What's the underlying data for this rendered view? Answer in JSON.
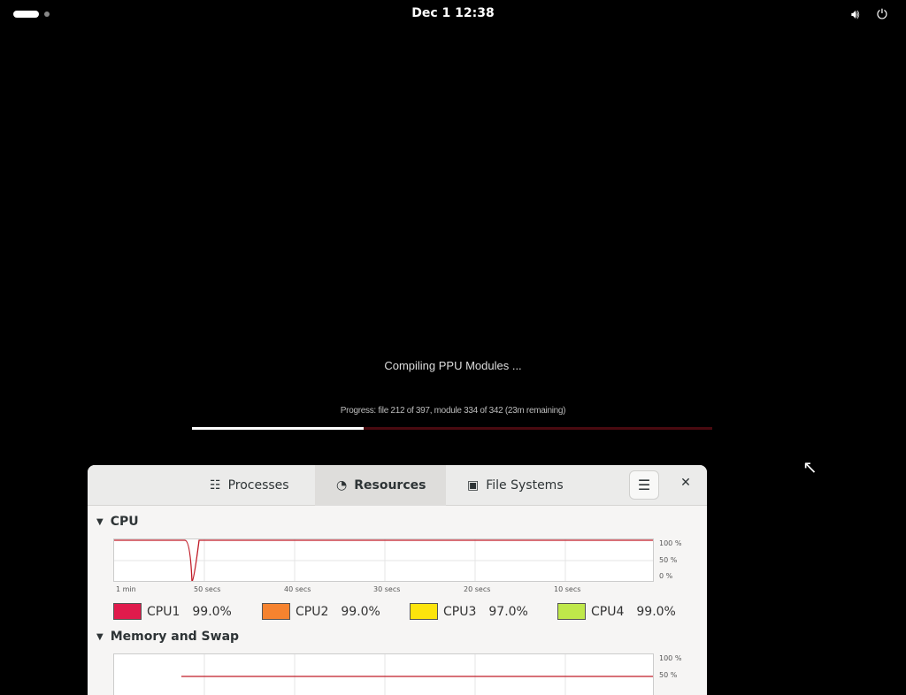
{
  "topbar": {
    "clock": "Dec 1  12:38",
    "icons": [
      "volume-icon",
      "power-icon"
    ]
  },
  "splash": {
    "title": "Compiling PPU Modules ...",
    "progress_text": "Progress: file 212 of 397, module 334 of 342 (23m remaining)",
    "progress_percent": 33,
    "colors": {
      "fill": "#ffffff",
      "track": "#4a0a10"
    }
  },
  "monitor": {
    "tabs": [
      {
        "label": "Processes",
        "icon": "list-icon"
      },
      {
        "label": "Resources",
        "icon": "gauge-icon",
        "active": true
      },
      {
        "label": "File Systems",
        "icon": "disk-icon"
      }
    ],
    "cpu": {
      "title": "CPU",
      "y_ticks": [
        "100 %",
        "50 %",
        "0 %"
      ],
      "x_ticks": [
        "1 min",
        "50 secs",
        "40 secs",
        "30 secs",
        "20 secs",
        "10 secs"
      ],
      "legend": [
        {
          "name": "CPU1",
          "value": "99.0%",
          "color": "#e01b4c"
        },
        {
          "name": "CPU2",
          "value": "99.0%",
          "color": "#f6832f"
        },
        {
          "name": "CPU3",
          "value": "97.0%",
          "color": "#fde40c"
        },
        {
          "name": "CPU4",
          "value": "99.0%",
          "color": "#bfe84a"
        }
      ]
    },
    "memory": {
      "title": "Memory and Swap",
      "y_ticks": [
        "100 %",
        "50 %"
      ]
    }
  }
}
